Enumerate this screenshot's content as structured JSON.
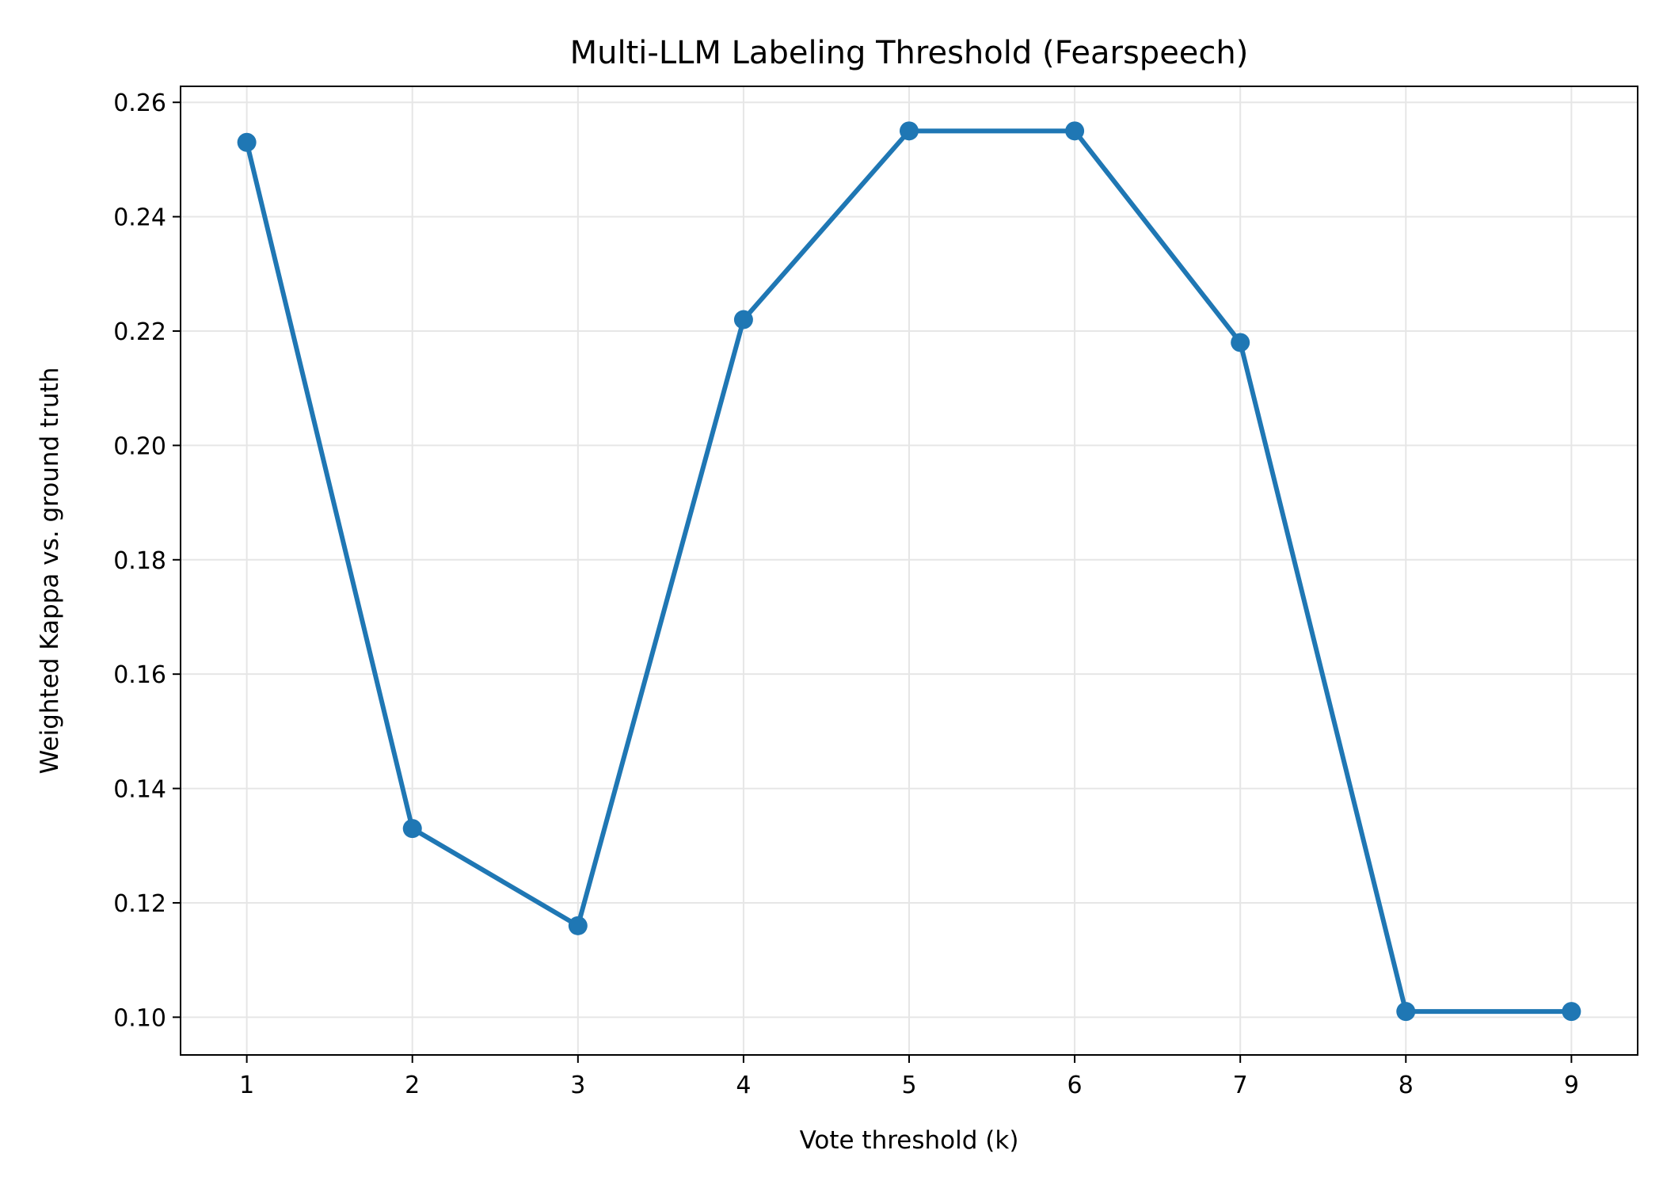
{
  "chart_data": {
    "type": "line",
    "title": "Multi-LLM Labeling Threshold (Fearspeech)",
    "xlabel": "Vote threshold (k)",
    "ylabel": "Weighted Kappa vs. ground truth",
    "x": [
      1,
      2,
      3,
      4,
      5,
      6,
      7,
      8,
      9
    ],
    "series": [
      {
        "values": [
          0.253,
          0.133,
          0.116,
          0.222,
          0.255,
          0.255,
          0.218,
          0.101,
          0.101
        ]
      }
    ],
    "xlim": [
      0.6,
      9.4
    ],
    "ylim": [
      0.0934,
      0.2628
    ],
    "xticks": [
      1,
      2,
      3,
      4,
      5,
      6,
      7,
      8,
      9
    ],
    "yticks": [
      0.1,
      0.12,
      0.14,
      0.16,
      0.18,
      0.2,
      0.22,
      0.24,
      0.26
    ],
    "ytick_labels": [
      "0.10",
      "0.12",
      "0.14",
      "0.16",
      "0.18",
      "0.20",
      "0.22",
      "0.24",
      "0.26"
    ],
    "grid": true,
    "legend": "none",
    "colors": {
      "line": "#1f77b4",
      "grid": "#e6e6e6",
      "axis": "#000000"
    }
  }
}
